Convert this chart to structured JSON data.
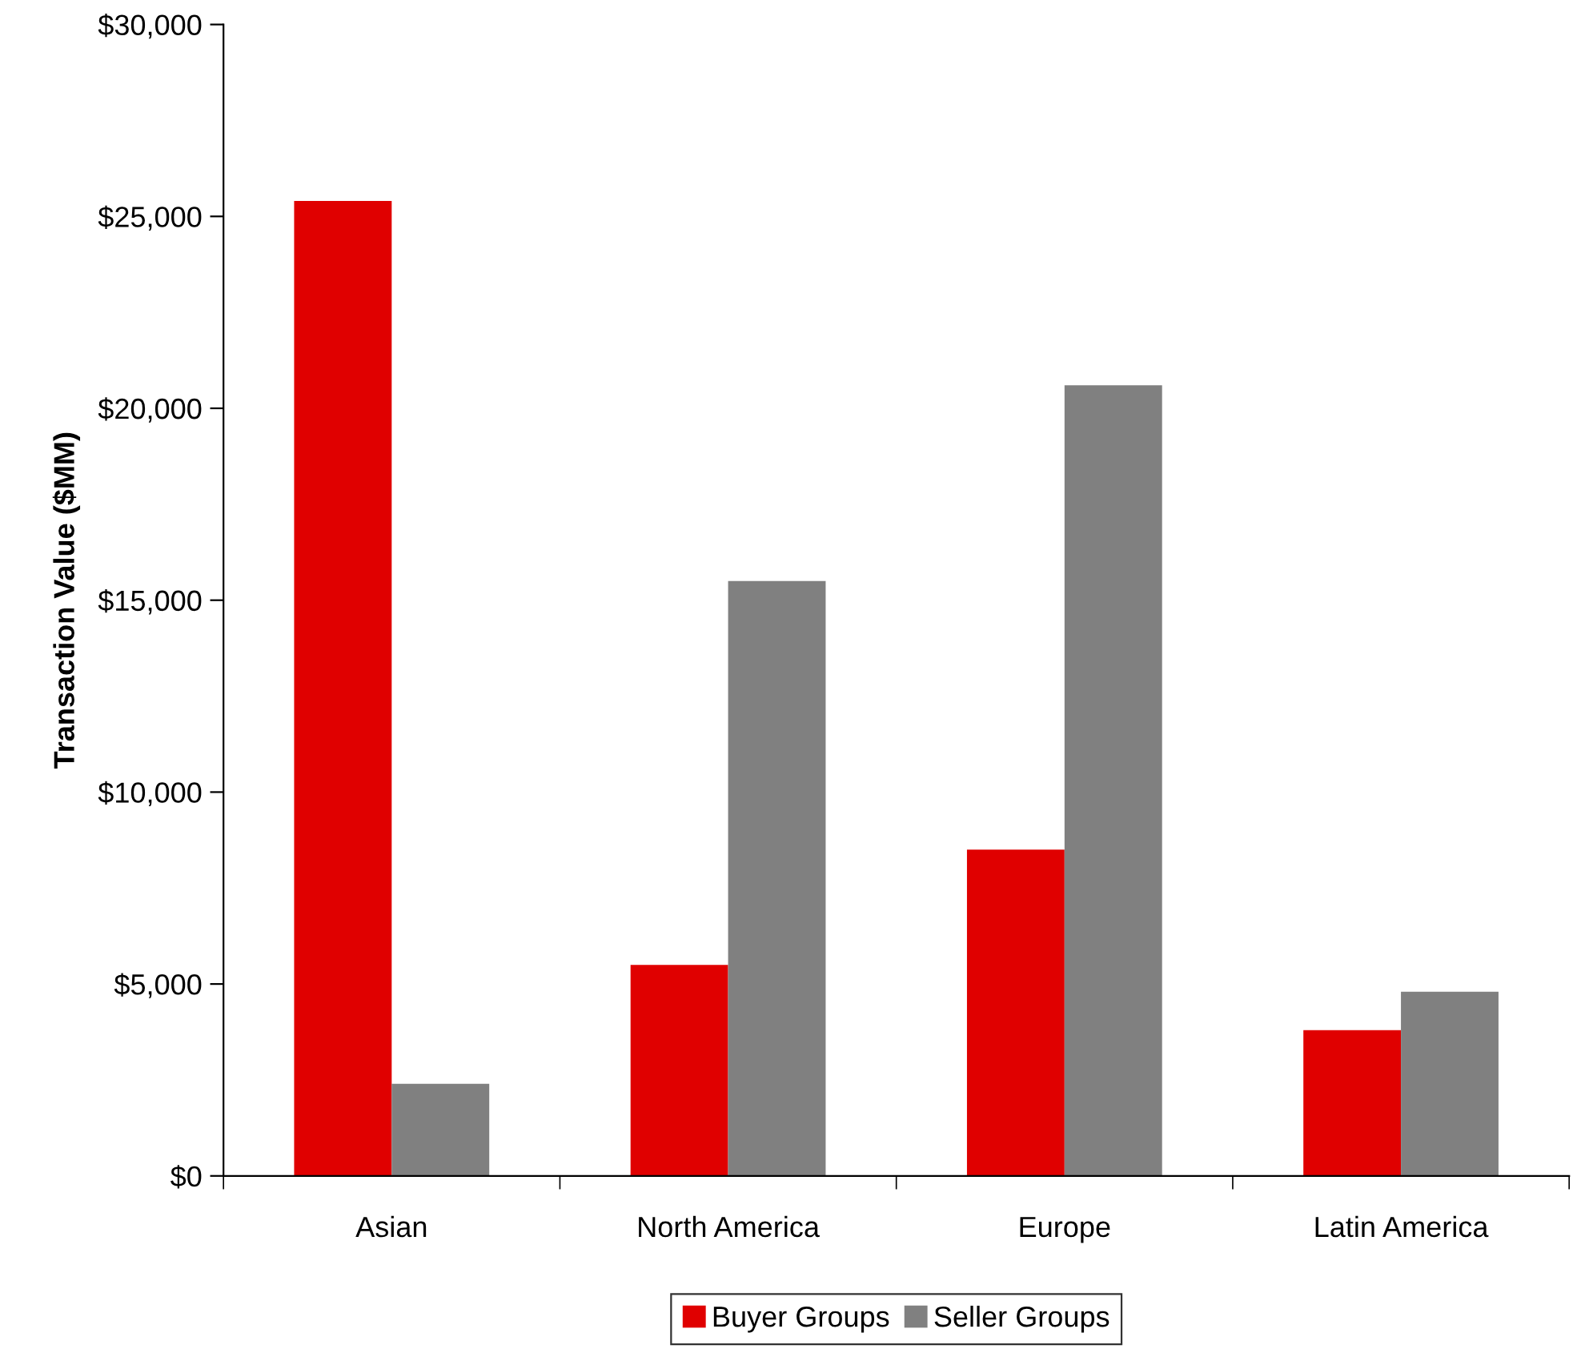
{
  "chart_data": {
    "type": "bar",
    "ylabel": "Transaction Value ($MM)",
    "categories": [
      "Asian",
      "North America",
      "Europe",
      "Latin America"
    ],
    "series": [
      {
        "name": "Buyer Groups",
        "color": "#e00000",
        "values": [
          25400,
          5500,
          8500,
          3800
        ]
      },
      {
        "name": "Seller Groups",
        "color": "#808080",
        "values": [
          2400,
          15500,
          20600,
          4800
        ]
      }
    ],
    "ylim": [
      0,
      30000
    ],
    "yticks": [
      {
        "value": 0,
        "label": "$0"
      },
      {
        "value": 5000,
        "label": "$5,000"
      },
      {
        "value": 10000,
        "label": "$10,000"
      },
      {
        "value": 15000,
        "label": "$15,000"
      },
      {
        "value": 20000,
        "label": "$20,000"
      },
      {
        "value": 25000,
        "label": "$25,000"
      },
      {
        "value": 30000,
        "label": "$30,000"
      }
    ],
    "grid": false,
    "legend": "bottom"
  }
}
